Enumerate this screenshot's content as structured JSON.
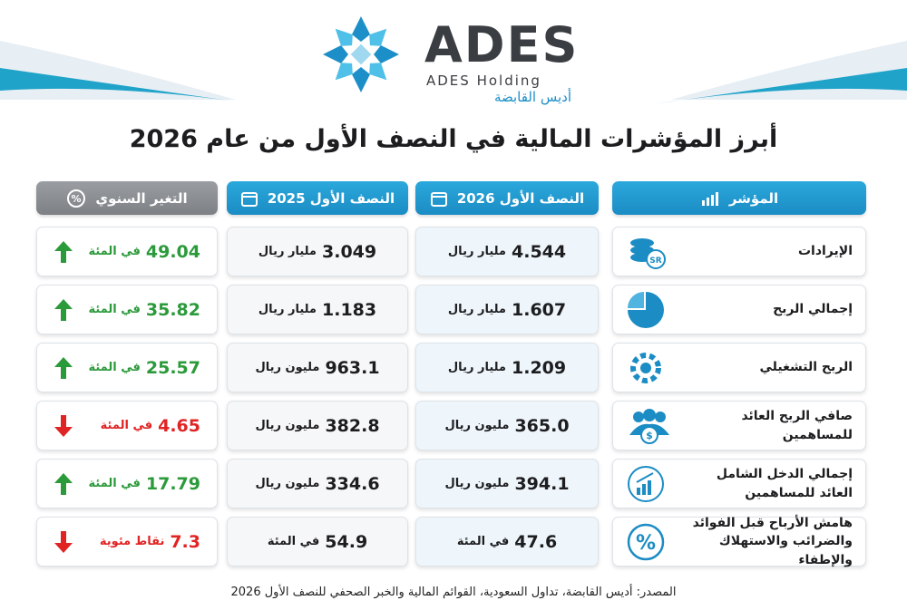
{
  "header": {
    "brand": "ADES",
    "brand_sub": "ADES Holding",
    "brand_ar": "أديس القابضة"
  },
  "title": "أبرز المؤشرات المالية في النصف الأول من عام 2026",
  "table": {
    "columns": [
      "المؤشر",
      "النصف الأول 2026",
      "النصف الأول 2025",
      "التغير السنوي"
    ],
    "rows": [
      {
        "indicator": "الإيرادات",
        "h1_2026": {
          "value": "4.544",
          "unit": "مليار ريال"
        },
        "h1_2025": {
          "value": "3.049",
          "unit": "مليار ريال"
        },
        "change": {
          "value": "49.04",
          "unit": "في المئة",
          "direction": "up"
        }
      },
      {
        "indicator": "إجمالي الربح",
        "h1_2026": {
          "value": "1.607",
          "unit": "مليار ريال"
        },
        "h1_2025": {
          "value": "1.183",
          "unit": "مليار ريال"
        },
        "change": {
          "value": "35.82",
          "unit": "في المئة",
          "direction": "up"
        }
      },
      {
        "indicator": "الربح التشغيلي",
        "h1_2026": {
          "value": "1.209",
          "unit": "مليار ريال"
        },
        "h1_2025": {
          "value": "963.1",
          "unit": "مليون ريال"
        },
        "change": {
          "value": "25.57",
          "unit": "في المئة",
          "direction": "up"
        }
      },
      {
        "indicator": "صافي الربح العائد للمساهمين",
        "h1_2026": {
          "value": "365.0",
          "unit": "مليون ريال"
        },
        "h1_2025": {
          "value": "382.8",
          "unit": "مليون ريال"
        },
        "change": {
          "value": "4.65",
          "unit": "في المئة",
          "direction": "down"
        }
      },
      {
        "indicator": "إجمالي الدخل الشامل العائد للمساهمين",
        "h1_2026": {
          "value": "394.1",
          "unit": "مليون ريال"
        },
        "h1_2025": {
          "value": "334.6",
          "unit": "مليون ريال"
        },
        "change": {
          "value": "17.79",
          "unit": "في المئة",
          "direction": "up"
        }
      },
      {
        "indicator": "هامش الأرباح قبل الفوائد والضرائب والاستهلاك والإطفاء",
        "h1_2026": {
          "value": "47.6",
          "unit": "في المئة"
        },
        "h1_2025": {
          "value": "54.9",
          "unit": "في المئة"
        },
        "change": {
          "value": "7.3",
          "unit": "نقاط مئوية",
          "direction": "down"
        }
      }
    ]
  },
  "source": "المصدر: أديس القابضة، تداول السعودية، القوائم المالية والخبر الصحفي للنصف الأول 2026"
}
